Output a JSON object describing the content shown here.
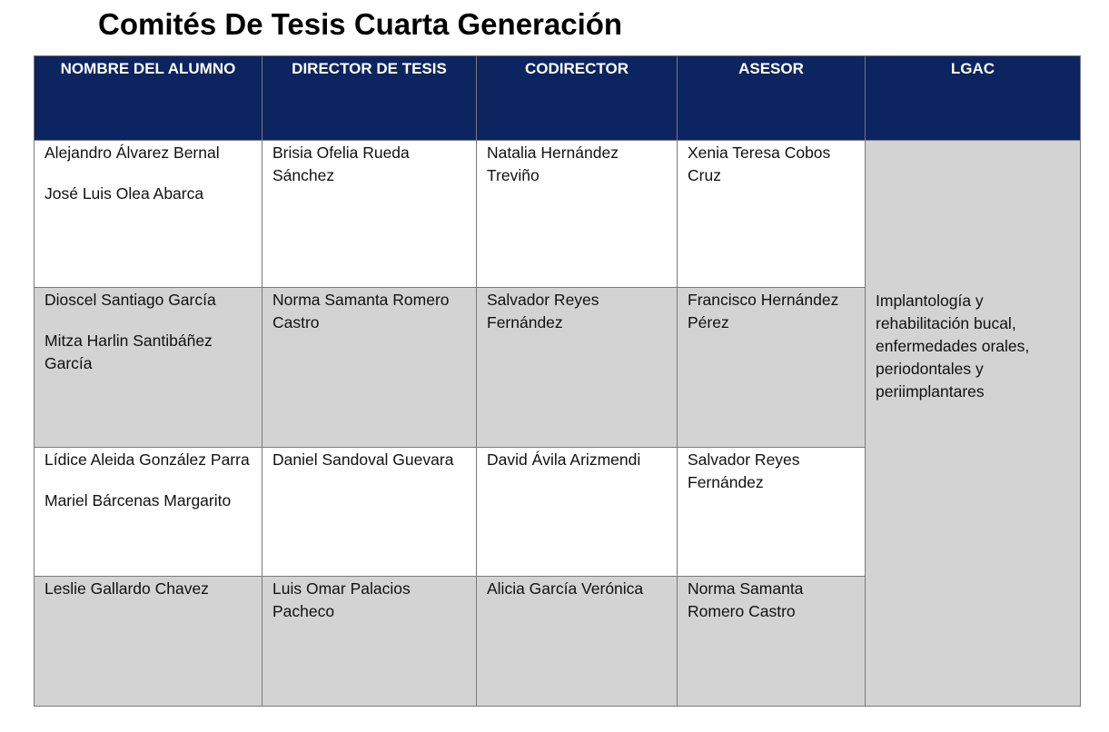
{
  "title": "Comités De Tesis Cuarta Generación",
  "colors": {
    "header_bg": "#0c2460",
    "gray_row": "#d4d3d4"
  },
  "headers": [
    "NOMBRE DEL ALUMNO",
    "DIRECTOR DE TESIS",
    "CODIRECTOR",
    "ASESOR",
    "LGAC"
  ],
  "rows": [
    {
      "alumnos": [
        "Alejandro Álvarez Bernal",
        "José Luis Olea Abarca"
      ],
      "director": "Brisia Ofelia Rueda Sánchez",
      "codirector": "Natalia  Hernández Treviño",
      "asesor": "Xenia Teresa Cobos Cruz"
    },
    {
      "alumnos": [
        "Dioscel Santiago García",
        "Mitza Harlin Santibáñez García"
      ],
      "director": "Norma Samanta Romero Castro",
      "codirector": "Salvador Reyes Fernández",
      "asesor": "Francisco Hernández Pérez"
    },
    {
      "alumnos": [
        "Lídice Aleida González Parra",
        "Mariel Bárcenas Margarito"
      ],
      "director": "Daniel Sandoval Guevara",
      "codirector": "David Ávila Arizmendi",
      "asesor": "Salvador Reyes Fernández"
    },
    {
      "alumnos": [
        "Leslie Gallardo Chavez"
      ],
      "director": "Luis Omar Palacios Pacheco",
      "codirector": "Alicia García Verónica",
      "asesor": "Norma Samanta Romero Castro"
    }
  ],
  "lgac": "Implantología y rehabilitación bucal, enfermedades orales, periodontales y periimplantares"
}
